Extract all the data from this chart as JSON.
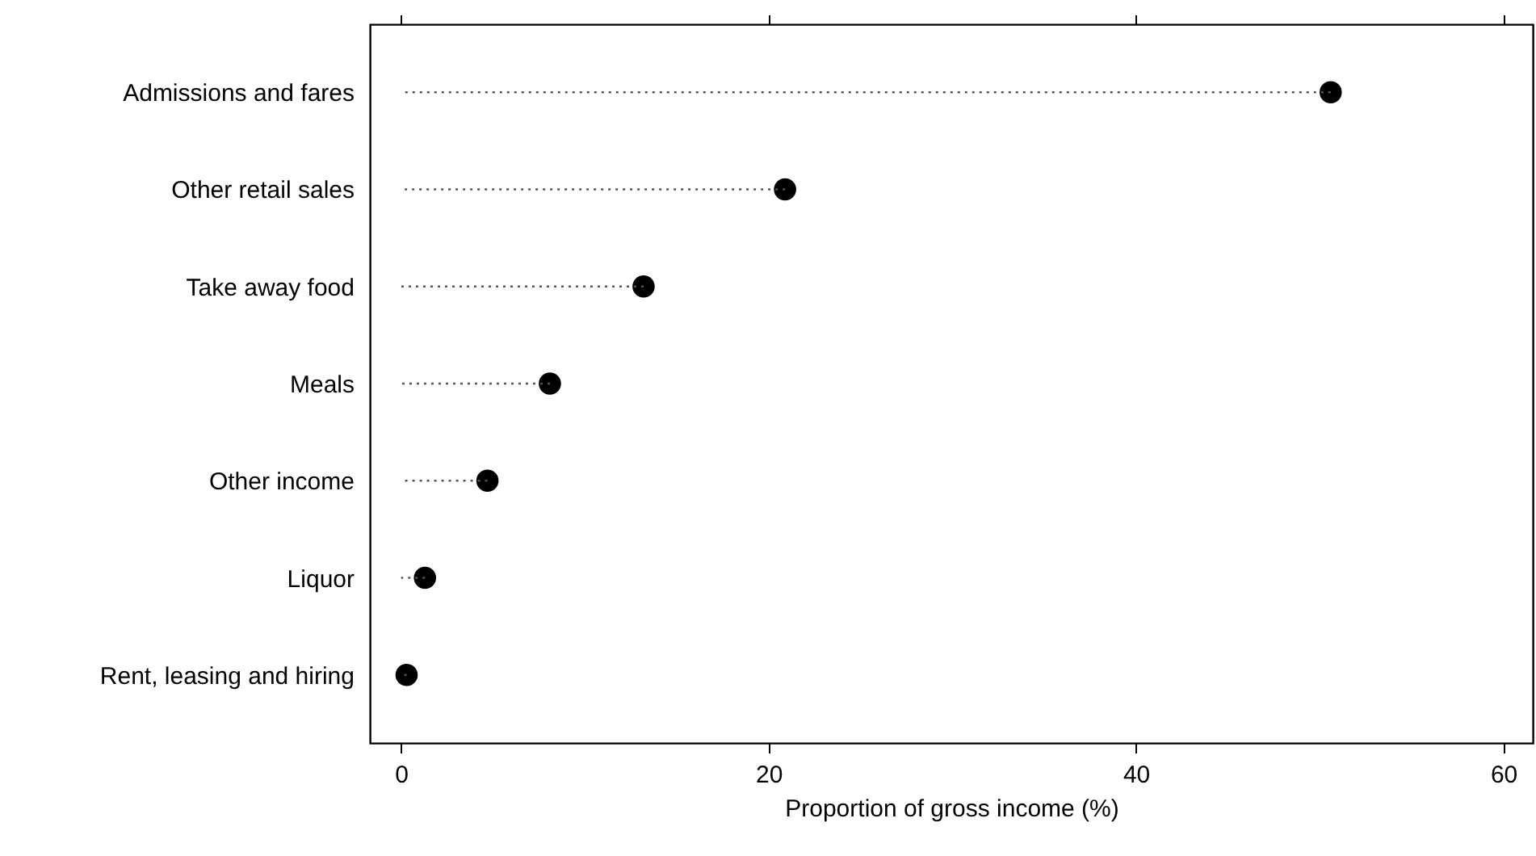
{
  "chart_data": {
    "type": "lollipop",
    "orientation": "horizontal",
    "xlabel": "Proportion of gross income (%)",
    "categories": [
      "Admissions and fares",
      "Other retail sales",
      "Take away food",
      "Meals",
      "Other income",
      "Liquor",
      "Rent, leasing and hiring"
    ],
    "values": [
      50.6,
      20.9,
      13.2,
      8.1,
      4.7,
      1.3,
      0.3
    ],
    "color": "#000000",
    "marker": "circle",
    "line_style": "dotted",
    "xlim": [
      -1.7,
      61.6
    ],
    "xticks": [
      0,
      20,
      40,
      60
    ]
  }
}
